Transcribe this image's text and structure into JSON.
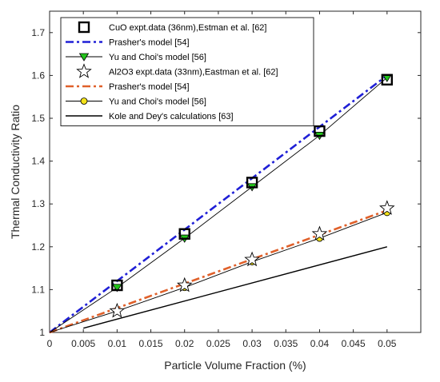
{
  "chart_data": {
    "type": "line",
    "title": "",
    "xlabel": "Particle Volume Fraction  (%)",
    "ylabel": "Thermal Conductivity Ratio",
    "xlim": [
      0,
      0.055
    ],
    "ylim": [
      1,
      1.75
    ],
    "x_ticks": [
      "0",
      "0.005",
      "0.01",
      "0.015",
      "0.02",
      "0.025",
      "0.03",
      "0.035",
      "0.04",
      "0.045",
      "0.05"
    ],
    "y_ticks": [
      "1",
      "1.1",
      "1.2",
      "1.3",
      "1.4",
      "1.5",
      "1.6",
      "1.7"
    ],
    "grid": false,
    "legend_position": "top-left",
    "series": [
      {
        "name": "CuO expt.data (36nm),Estman et al. [62]",
        "style": "open-square",
        "color": "#000000",
        "x": [
          0.01,
          0.02,
          0.03,
          0.04,
          0.05
        ],
        "y": [
          1.11,
          1.23,
          1.35,
          1.47,
          1.59
        ]
      },
      {
        "name": "Prasher's model [54]",
        "style": "dashdot",
        "color": "#1f1fd6",
        "x": [
          0,
          0.05
        ],
        "y": [
          1.0,
          1.6
        ]
      },
      {
        "name": "Yu and Choi's model [56]",
        "style": "line-triangle-down",
        "color": "#000000",
        "marker_color": "#22c31a",
        "x": [
          0,
          0.01,
          0.02,
          0.03,
          0.04,
          0.05
        ],
        "y": [
          1.0,
          1.105,
          1.22,
          1.34,
          1.46,
          1.595
        ]
      },
      {
        "name": "Al2O3 expt.data (33nm),Eastman et al. [62]",
        "style": "open-star",
        "color": "#000000",
        "x": [
          0.01,
          0.02,
          0.03,
          0.04,
          0.05
        ],
        "y": [
          1.05,
          1.11,
          1.17,
          1.23,
          1.29
        ]
      },
      {
        "name": "Prasher's  model [54]",
        "style": "dashdot",
        "color": "#e0602a",
        "x": [
          0,
          0.05
        ],
        "y": [
          1.0,
          1.285
        ]
      },
      {
        "name": "Yu and Choi's model [56]",
        "style": "line-circle",
        "color": "#000000",
        "marker_color": "#f3e21a",
        "x": [
          0,
          0.01,
          0.02,
          0.03,
          0.04,
          0.05
        ],
        "y": [
          1.0,
          1.05,
          1.105,
          1.165,
          1.22,
          1.28
        ]
      },
      {
        "name": "Kole and Dey's calculations [63]",
        "style": "solid",
        "color": "#000000",
        "x": [
          0.005,
          0.05
        ],
        "y": [
          1.01,
          1.2
        ]
      }
    ]
  }
}
